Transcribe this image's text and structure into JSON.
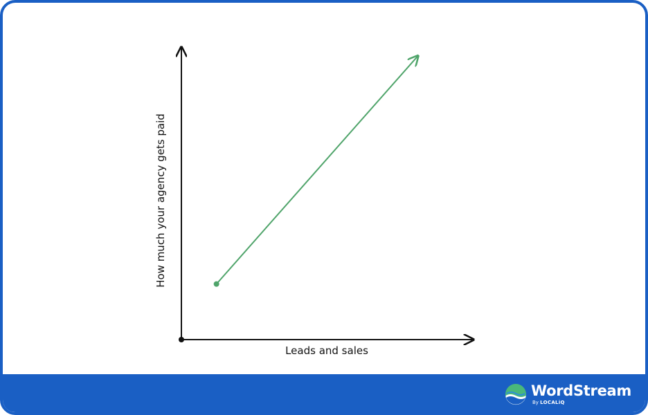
{
  "chart_data": {
    "type": "line",
    "title": "",
    "xlabel": "Leads and sales",
    "ylabel": "How much your agency gets paid",
    "xlim": [
      0,
      10
    ],
    "ylim": [
      0,
      10
    ],
    "series": [
      {
        "values": [
          {
            "x": 1.2,
            "y": 1.9
          },
          {
            "x": 8.1,
            "y": 9.7
          }
        ]
      }
    ],
    "colors": {
      "axis": "#111111",
      "series": "#4fa46a"
    },
    "grid": false
  },
  "brand": {
    "name": "WordStream",
    "by": "By",
    "sub": "LOCALiQ",
    "colors": {
      "band": "#1a5fc4",
      "logo_top": "#49b87a",
      "logo_bottom": "#1a5fc4"
    }
  }
}
